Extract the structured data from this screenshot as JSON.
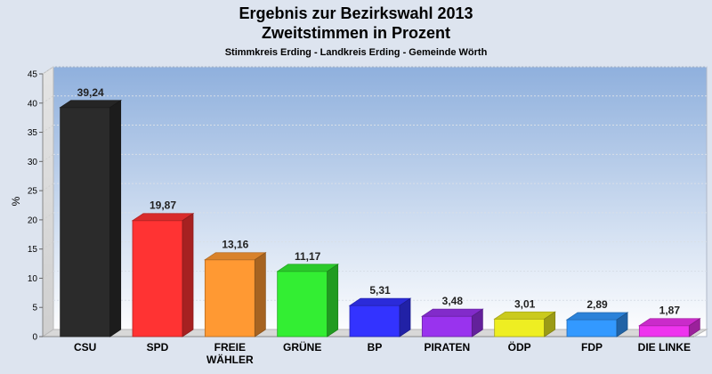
{
  "chart_data": {
    "type": "bar",
    "title": "Ergebnis zur Bezirkswahl 2013",
    "subtitle": "Zweitstimmen in Prozent",
    "subsubtitle": "Stimmkreis Erding - Landkreis Erding - Gemeinde Wörth",
    "ylabel": "%",
    "ylim": [
      0,
      45
    ],
    "yticks": [
      "0",
      "5",
      "10",
      "15",
      "20",
      "25",
      "30",
      "35",
      "40",
      "45"
    ],
    "grid": true,
    "categories": [
      "CSU",
      "SPD",
      "FREIE WÄHLER",
      "GRÜNE",
      "BP",
      "PIRATEN",
      "ÖDP",
      "FDP",
      "DIE LINKE"
    ],
    "category_lines": [
      [
        "CSU"
      ],
      [
        "SPD"
      ],
      [
        "FREIE",
        "WÄHLER"
      ],
      [
        "GRÜNE"
      ],
      [
        "BP"
      ],
      [
        "PIRATEN"
      ],
      [
        "ÖDP"
      ],
      [
        "FDP"
      ],
      [
        "DIE LINKE"
      ]
    ],
    "values": [
      39.24,
      19.87,
      13.16,
      11.17,
      5.31,
      3.48,
      3.01,
      2.89,
      1.87
    ],
    "value_labels": [
      "39,24",
      "19,87",
      "13,16",
      "11,17",
      "5,31",
      "3,48",
      "3,01",
      "2,89",
      "1,87"
    ],
    "colors": [
      "#2b2b2b",
      "#ff3333",
      "#ff9933",
      "#33ee33",
      "#3333ff",
      "#9933ee",
      "#eeee22",
      "#3399ff",
      "#ee33ee"
    ]
  }
}
